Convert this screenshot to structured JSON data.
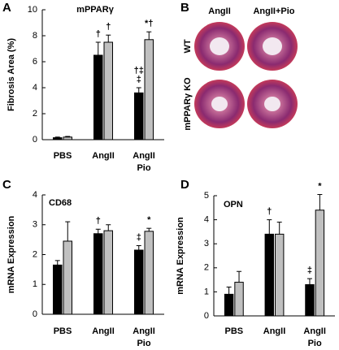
{
  "chart_data": [
    {
      "type": "bar",
      "panel": "A",
      "title": "mPPARγ",
      "y_label": "Fibrosis Area (%)",
      "categories": [
        [
          "PBS"
        ],
        [
          "AngII"
        ],
        [
          "AngII",
          "Pio"
        ]
      ],
      "ylim": [
        0,
        10
      ],
      "yticks": [
        0,
        2,
        4,
        6,
        8,
        10
      ],
      "series": [
        {
          "color": "#000000",
          "values": [
            0.15,
            6.5,
            3.6
          ],
          "errors": [
            0.05,
            1.0,
            0.4
          ],
          "markers": [
            null,
            [
              "†"
            ],
            [
              "†‡",
              "‡"
            ]
          ]
        },
        {
          "color": "#c0c0c0",
          "values": [
            0.2,
            7.5,
            7.7
          ],
          "errors": [
            0.05,
            0.55,
            0.6
          ],
          "markers": [
            null,
            [
              "†"
            ],
            [
              "*†"
            ]
          ]
        }
      ]
    },
    {
      "type": "bar",
      "panel": "C",
      "title": "CD68",
      "y_label": "mRNA Expression",
      "categories": [
        [
          "PBS"
        ],
        [
          "AngII"
        ],
        [
          "AngII",
          "Pio"
        ]
      ],
      "ylim": [
        0,
        4
      ],
      "yticks": [
        0,
        1,
        2,
        3,
        4
      ],
      "series": [
        {
          "color": "#000000",
          "values": [
            1.65,
            2.7,
            2.15
          ],
          "errors": [
            0.15,
            0.15,
            0.15
          ],
          "markers": [
            null,
            [
              "†"
            ],
            [
              "‡"
            ]
          ]
        },
        {
          "color": "#c0c0c0",
          "values": [
            2.45,
            2.8,
            2.78
          ],
          "errors": [
            0.65,
            0.2,
            0.1
          ],
          "markers": [
            null,
            null,
            [
              "*"
            ]
          ]
        }
      ]
    },
    {
      "type": "bar",
      "panel": "D",
      "title": "OPN",
      "y_label": "mRNA Expression",
      "categories": [
        [
          "PBS"
        ],
        [
          "AngII"
        ],
        [
          "AngII",
          "Pio"
        ]
      ],
      "ylim": [
        0,
        5
      ],
      "yticks": [
        0,
        1,
        2,
        3,
        4,
        5
      ],
      "series": [
        {
          "color": "#000000",
          "values": [
            0.9,
            3.4,
            1.3
          ],
          "errors": [
            0.3,
            0.6,
            0.25
          ],
          "markers": [
            null,
            [
              "†"
            ],
            [
              "‡"
            ]
          ]
        },
        {
          "color": "#c0c0c0",
          "values": [
            1.4,
            3.4,
            4.4
          ],
          "errors": [
            0.45,
            0.5,
            0.65
          ],
          "markers": [
            null,
            null,
            [
              "*"
            ]
          ]
        }
      ]
    }
  ],
  "figure_b": {
    "panel": "B",
    "columns": [
      "AngII",
      "AngII+Pio"
    ],
    "rows": [
      "WT",
      "mPPARγ KO"
    ]
  }
}
